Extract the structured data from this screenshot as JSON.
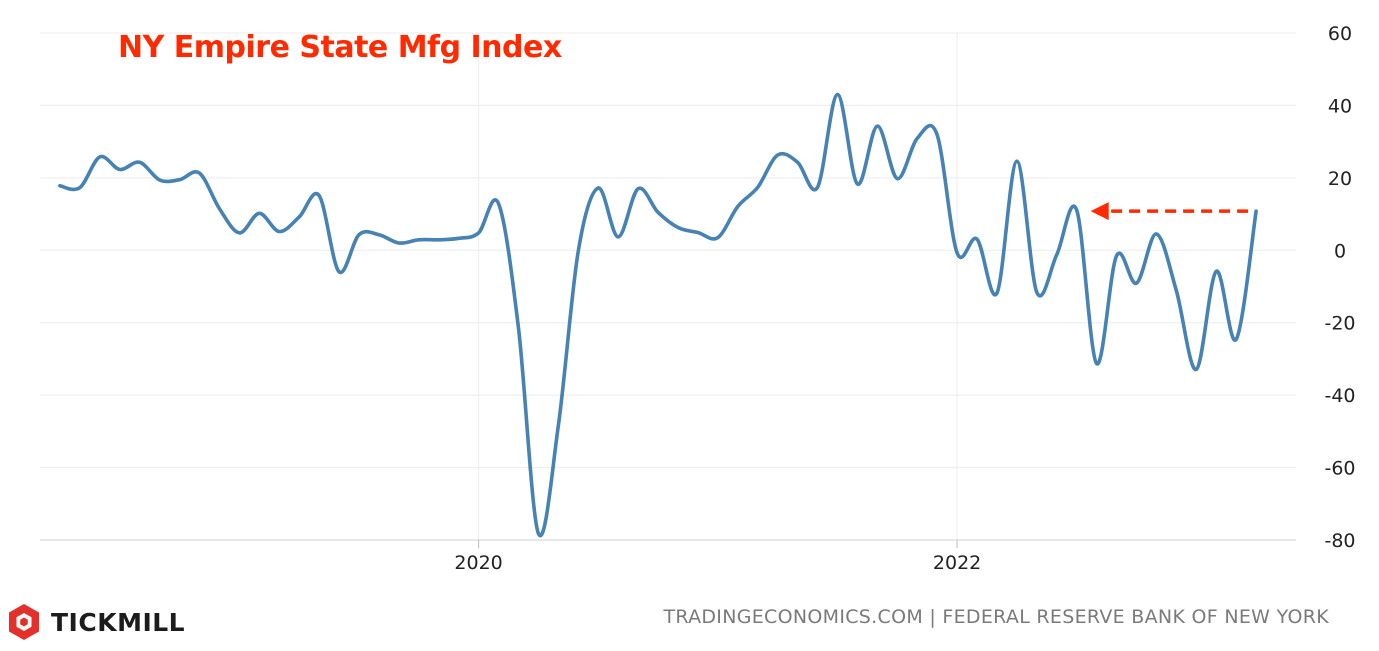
{
  "chart_data": {
    "type": "line",
    "title": "NY Empire State Mfg Index",
    "x_tick_labels": [
      "2020",
      "2022"
    ],
    "y_tick_labels": [
      "60",
      "40",
      "20",
      "0",
      "-20",
      "-40",
      "-60",
      "-80"
    ],
    "ylim": [
      -80,
      60
    ],
    "xlim": [
      "2018-03",
      "2023-06"
    ],
    "grid": true,
    "y_axis_position": "right",
    "series": [
      {
        "color": "#4682b4",
        "points": [
          [
            "2018-04",
            17.8
          ],
          [
            "2018-05",
            17.3
          ],
          [
            "2018-06",
            25.8
          ],
          [
            "2018-07",
            22.3
          ],
          [
            "2018-08",
            24.3
          ],
          [
            "2018-09",
            19.4
          ],
          [
            "2018-10",
            19.5
          ],
          [
            "2018-11",
            21.3
          ],
          [
            "2018-12",
            11.5
          ],
          [
            "2019-01",
            4.8
          ],
          [
            "2019-02",
            10.2
          ],
          [
            "2019-03",
            5.2
          ],
          [
            "2019-04",
            9.2
          ],
          [
            "2019-05",
            15.1
          ],
          [
            "2019-06",
            -5.9
          ],
          [
            "2019-07",
            4.3
          ],
          [
            "2019-08",
            4.3
          ],
          [
            "2019-09",
            2.0
          ],
          [
            "2019-10",
            2.9
          ],
          [
            "2019-11",
            2.9
          ],
          [
            "2019-12",
            3.3
          ],
          [
            "2020-01",
            4.8
          ],
          [
            "2020-02",
            12.9
          ],
          [
            "2020-03",
            -21.5
          ],
          [
            "2020-04",
            -78.2
          ],
          [
            "2020-05",
            -48.5
          ],
          [
            "2020-06",
            -0.2
          ],
          [
            "2020-07",
            17.2
          ],
          [
            "2020-08",
            3.7
          ],
          [
            "2020-09",
            17.0
          ],
          [
            "2020-10",
            10.5
          ],
          [
            "2020-11",
            6.3
          ],
          [
            "2020-12",
            4.9
          ],
          [
            "2021-01",
            3.5
          ],
          [
            "2021-02",
            12.1
          ],
          [
            "2021-03",
            17.4
          ],
          [
            "2021-04",
            26.3
          ],
          [
            "2021-05",
            24.3
          ],
          [
            "2021-06",
            17.4
          ],
          [
            "2021-07",
            43.0
          ],
          [
            "2021-08",
            18.3
          ],
          [
            "2021-09",
            34.3
          ],
          [
            "2021-10",
            19.8
          ],
          [
            "2021-11",
            30.9
          ],
          [
            "2021-12",
            31.9
          ],
          [
            "2022-01",
            -0.7
          ],
          [
            "2022-02",
            3.1
          ],
          [
            "2022-03",
            -11.8
          ],
          [
            "2022-04",
            24.6
          ],
          [
            "2022-05",
            -11.6
          ],
          [
            "2022-06",
            -1.2
          ],
          [
            "2022-07",
            11.1
          ],
          [
            "2022-08",
            -31.3
          ],
          [
            "2022-09",
            -1.5
          ],
          [
            "2022-10",
            -9.1
          ],
          [
            "2022-11",
            4.5
          ],
          [
            "2022-12",
            -11.2
          ],
          [
            "2023-01",
            -32.9
          ],
          [
            "2023-02",
            -5.8
          ],
          [
            "2023-03",
            -24.6
          ],
          [
            "2023-04",
            10.8
          ]
        ]
      }
    ],
    "annotation": {
      "type": "dashed-arrow",
      "color": "#ff2a00",
      "from": [
        "2023-04",
        10.8
      ],
      "to": [
        "2022-07",
        10.8
      ]
    }
  },
  "footer": {
    "source": "TRADINGECONOMICS.COM | FEDERAL RESERVE BANK OF NEW YORK",
    "brand": "TICKMILL",
    "brand_icon": "tickmill-logo-icon",
    "brand_color": "#e4302b"
  }
}
